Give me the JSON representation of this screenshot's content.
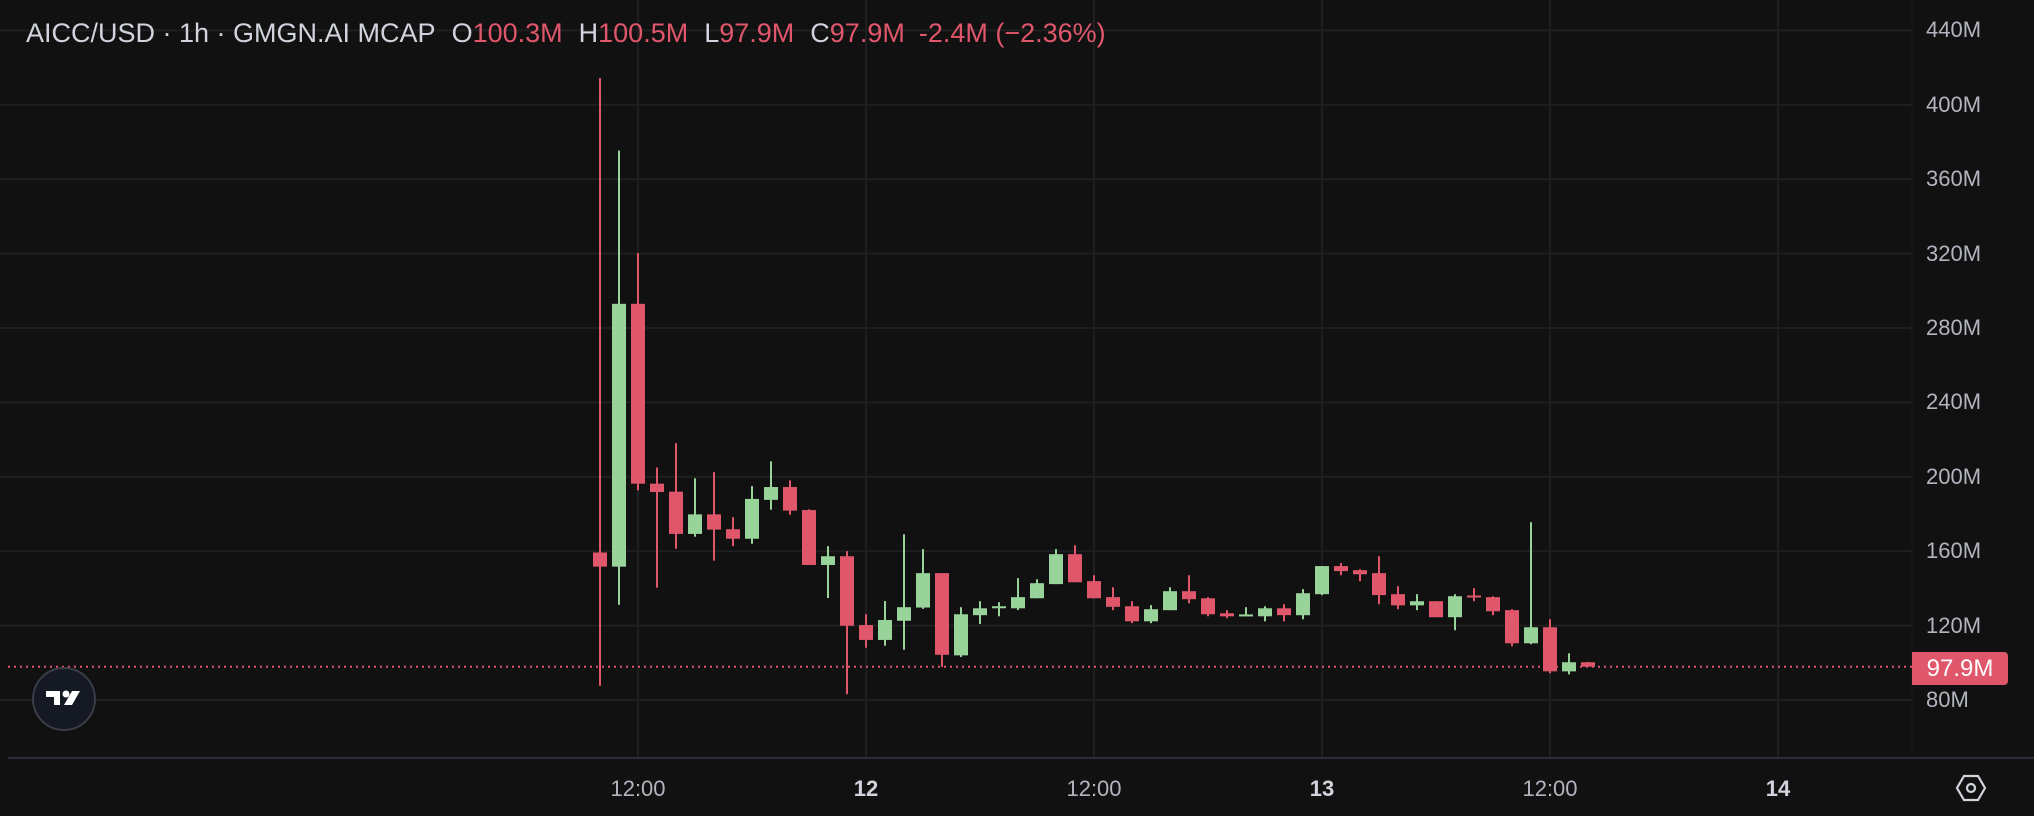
{
  "header": {
    "symbol": "AICC/USD · 1h · GMGN.AI MCAP",
    "open_label": "O",
    "open": "100.3M",
    "high_label": "H",
    "high": "100.5M",
    "low_label": "L",
    "low": "97.9M",
    "close_label": "C",
    "close": "97.9M",
    "change": "-2.4M (−2.36%)"
  },
  "price_axis": {
    "labels": [
      "440M",
      "400M",
      "360M",
      "320M",
      "280M",
      "240M",
      "200M",
      "160M",
      "120M",
      "80M"
    ],
    "last_price": "97.9M"
  },
  "time_axis": {
    "labels": [
      {
        "text": "12:00",
        "day": false
      },
      {
        "text": "12",
        "day": true
      },
      {
        "text": "12:00",
        "day": false
      },
      {
        "text": "13",
        "day": true
      },
      {
        "text": "12:00",
        "day": false
      },
      {
        "text": "14",
        "day": true
      }
    ]
  },
  "colors": {
    "up": "#98d49a",
    "down": "#e0566b",
    "grid": "#1f1f1f",
    "bg": "#111111"
  },
  "icons": {
    "logo": "tradingview-logo",
    "settings": "settings-hexagon-icon"
  },
  "chart_data": {
    "type": "candlestick",
    "title": "AICC/USD · 1h · GMGN.AI MCAP",
    "unit": "M USD",
    "interval": "1h",
    "first_candle": "day 11 10:00",
    "ylim": [
      50,
      445
    ],
    "yticks": [
      80,
      120,
      160,
      200,
      240,
      280,
      320,
      360,
      400,
      440
    ],
    "last_price": 97.9,
    "grid": true,
    "candles": [
      [
        159.3,
        414.4,
        87.6,
        151.7
      ],
      [
        151.7,
        375.4,
        131.2,
        293.0
      ],
      [
        293.0,
        320.2,
        192.7,
        196.3
      ],
      [
        196.3,
        205.0,
        140.4,
        191.8
      ],
      [
        192.0,
        218.1,
        161.3,
        169.3
      ],
      [
        169.3,
        199.2,
        167.8,
        179.8
      ],
      [
        179.8,
        202.5,
        154.9,
        171.6
      ],
      [
        171.8,
        178.3,
        162.7,
        166.7
      ],
      [
        166.7,
        195.0,
        164.0,
        188.1
      ],
      [
        187.6,
        208.3,
        182.3,
        194.5
      ],
      [
        194.5,
        198.1,
        179.6,
        181.8
      ],
      [
        182.1,
        182.5,
        152.6,
        152.6
      ],
      [
        152.6,
        162.7,
        134.8,
        157.3
      ],
      [
        157.3,
        160.0,
        83.1,
        119.9
      ],
      [
        120.3,
        126.1,
        108.1,
        112.3
      ],
      [
        112.3,
        133.2,
        109.2,
        123.0
      ],
      [
        122.6,
        169.1,
        107.0,
        129.9
      ],
      [
        129.7,
        161.1,
        129.0,
        148.2
      ],
      [
        148.2,
        148.2,
        97.8,
        104.3
      ],
      [
        104.0,
        129.9,
        103.1,
        126.1
      ],
      [
        125.6,
        133.1,
        120.9,
        129.3
      ],
      [
        129.7,
        132.6,
        125.0,
        130.4
      ],
      [
        129.3,
        145.5,
        128.4,
        135.3
      ],
      [
        134.7,
        144.9,
        134.7,
        142.8
      ],
      [
        142.3,
        161.1,
        142.3,
        158.4
      ],
      [
        158.4,
        163.2,
        143.3,
        143.3
      ],
      [
        143.9,
        147.1,
        134.7,
        134.7
      ],
      [
        135.3,
        140.6,
        128.3,
        130.1
      ],
      [
        130.4,
        133.1,
        121.3,
        122.3
      ],
      [
        122.3,
        131.0,
        121.3,
        128.8
      ],
      [
        128.3,
        140.6,
        128.3,
        138.5
      ],
      [
        138.5,
        147.1,
        132.0,
        134.2
      ],
      [
        134.7,
        135.3,
        125.0,
        126.1
      ],
      [
        126.6,
        128.3,
        124.0,
        125.0
      ],
      [
        125.6,
        129.9,
        125.6,
        126.0
      ],
      [
        125.0,
        130.4,
        122.3,
        129.3
      ],
      [
        129.3,
        131.5,
        122.3,
        125.6
      ],
      [
        125.6,
        139.6,
        123.4,
        137.4
      ],
      [
        136.9,
        152.0,
        136.4,
        152.0
      ],
      [
        152.0,
        153.6,
        147.1,
        149.3
      ],
      [
        149.8,
        150.3,
        143.9,
        147.6
      ],
      [
        148.2,
        157.3,
        131.5,
        136.4
      ],
      [
        136.9,
        141.2,
        128.8,
        130.9
      ],
      [
        130.9,
        136.9,
        128.3,
        133.1
      ],
      [
        133.1,
        133.1,
        124.5,
        124.5
      ],
      [
        124.5,
        136.9,
        117.5,
        135.8
      ],
      [
        136.2,
        140.1,
        133.1,
        135.8
      ],
      [
        135.3,
        135.8,
        125.6,
        127.7
      ],
      [
        128.3,
        128.8,
        108.9,
        110.5
      ],
      [
        110.5,
        175.6,
        110.0,
        119.1
      ],
      [
        119.1,
        123.4,
        94.4,
        95.4
      ],
      [
        95.4,
        105.1,
        93.8,
        100.3
      ],
      [
        100.3,
        100.5,
        97.9,
        97.9
      ]
    ]
  }
}
